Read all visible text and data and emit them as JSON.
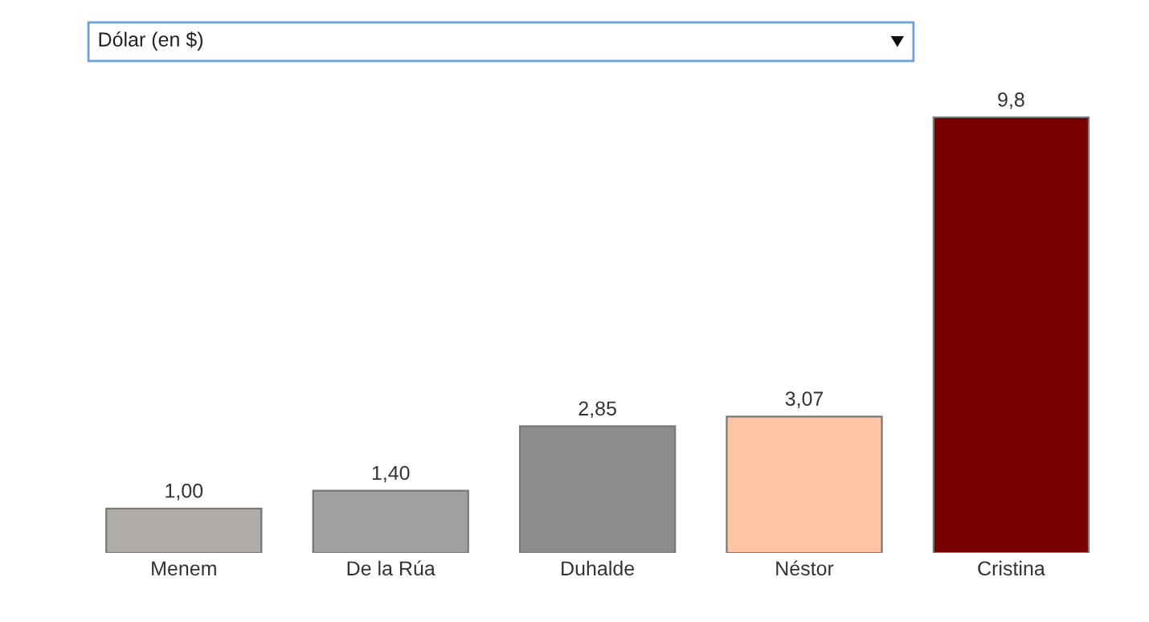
{
  "chart_data": {
    "type": "bar",
    "title": "Dólar (en $)",
    "categories": [
      "Menem",
      "De la Rúa",
      "Duhalde",
      "Néstor",
      "Cristina"
    ],
    "values": [
      1.0,
      1.4,
      2.85,
      3.07,
      9.8
    ],
    "colors": [
      "#b0ada8",
      "#a0a0a0",
      "#8c8c8c",
      "#ffc4a4",
      "#780000"
    ],
    "value_labels": [
      "1,00",
      "1,40",
      "2,85",
      "3,07",
      "9,8"
    ],
    "grid": false,
    "legend": false
  }
}
